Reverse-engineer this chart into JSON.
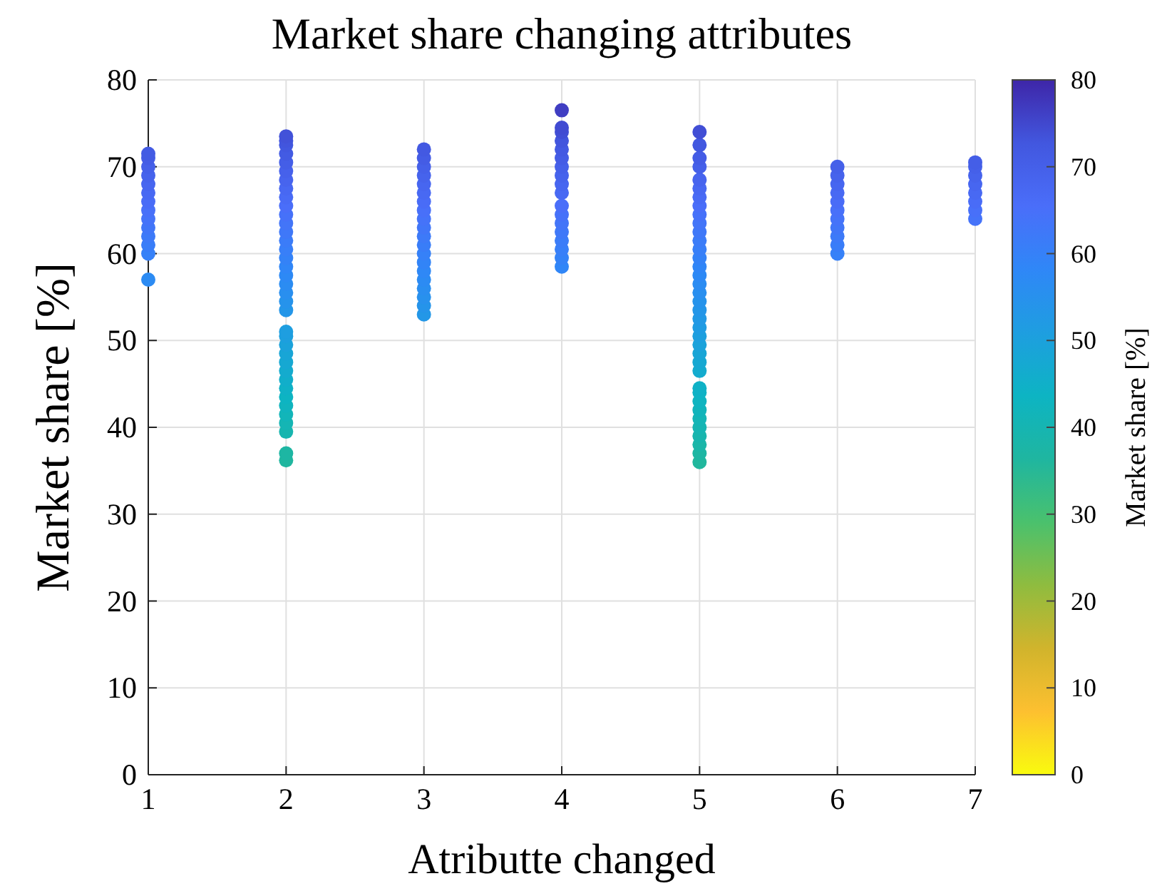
{
  "chart_data": {
    "type": "scatter",
    "title": "Market share changing attributes",
    "xlabel": "Atributte changed",
    "ylabel": "Market share [%]",
    "clabel": "Market share [%]",
    "xlim": [
      1,
      7
    ],
    "xticks": [
      1,
      2,
      3,
      4,
      5,
      6,
      7
    ],
    "ylim": [
      0,
      80
    ],
    "yticks": [
      0,
      10,
      20,
      30,
      40,
      50,
      60,
      70,
      80
    ],
    "clim": [
      0,
      80
    ],
    "cticks": [
      0,
      10,
      20,
      30,
      40,
      50,
      60,
      70,
      80
    ],
    "grid": true,
    "marker": "circle",
    "series": [
      {
        "x": [
          1,
          1,
          1,
          1,
          1,
          1,
          1,
          1,
          1,
          1,
          1,
          1,
          1,
          1,
          2,
          2,
          2,
          2,
          2,
          2,
          2,
          2,
          2,
          2,
          2,
          2,
          2,
          2,
          2,
          2,
          2,
          2,
          2,
          2,
          2,
          2,
          2,
          2,
          2,
          2,
          2,
          2,
          2,
          2,
          2,
          2,
          2,
          2,
          2,
          2,
          2,
          3,
          3,
          3,
          3,
          3,
          3,
          3,
          3,
          3,
          3,
          3,
          3,
          3,
          3,
          3,
          3,
          3,
          3,
          3,
          3,
          4,
          4,
          4,
          4,
          4,
          4,
          4,
          4,
          4,
          4,
          4,
          4,
          4,
          4,
          4,
          4,
          4,
          4,
          5,
          5,
          5,
          5,
          5,
          5,
          5,
          5,
          5,
          5,
          5,
          5,
          5,
          5,
          5,
          5,
          5,
          5,
          5,
          5,
          5,
          5,
          5,
          5,
          5,
          5,
          5,
          5,
          5,
          5,
          5,
          5,
          5,
          5,
          5,
          5,
          5,
          6,
          6,
          6,
          6,
          6,
          6,
          6,
          6,
          6,
          6,
          6,
          7,
          7,
          7,
          7,
          7,
          7,
          7,
          7
        ],
        "values": [
          57,
          60,
          61,
          62,
          63,
          64,
          65,
          66,
          67,
          68,
          69,
          70,
          71,
          71.5,
          36.2,
          37,
          39.5,
          40.5,
          41.5,
          42.5,
          43.5,
          44.5,
          45.5,
          46.5,
          47.5,
          48.5,
          49.5,
          50.5,
          51,
          53.5,
          54.5,
          55.5,
          56.5,
          57.5,
          58.5,
          59.5,
          60.5,
          61.5,
          62.5,
          63.5,
          64.5,
          65.5,
          66.5,
          67.5,
          68.5,
          69.5,
          70.5,
          71.5,
          72.5,
          73,
          73.5,
          53,
          54,
          55,
          56,
          57,
          58,
          59,
          60,
          61,
          62,
          63,
          64,
          65,
          66,
          67,
          68,
          69,
          70,
          71,
          72,
          58.5,
          59.5,
          60.5,
          61.5,
          62.5,
          63.5,
          64.5,
          65.5,
          67,
          68,
          69,
          70,
          71,
          72,
          73,
          74,
          74.5,
          76.5,
          36,
          37,
          38,
          39,
          40,
          41,
          42,
          43,
          44,
          44.5,
          46.5,
          47.5,
          48.5,
          49.5,
          50.5,
          51.5,
          52.5,
          53.5,
          54.5,
          55.5,
          56.5,
          57.5,
          58.5,
          59.5,
          60.5,
          61.5,
          62.5,
          63.5,
          64.5,
          65.5,
          66.5,
          67.5,
          68.5,
          70,
          71,
          72.5,
          74,
          60,
          61,
          62,
          63,
          64,
          65,
          66,
          67,
          68,
          69,
          70,
          64,
          65,
          66,
          67,
          68,
          69,
          70,
          70.5
        ],
        "cvalues": [
          57,
          60,
          61,
          62,
          63,
          64,
          65,
          66,
          67,
          68,
          69,
          70,
          71,
          71.5,
          36.2,
          37,
          39.5,
          40.5,
          41.5,
          42.5,
          43.5,
          44.5,
          45.5,
          46.5,
          47.5,
          48.5,
          49.5,
          50.5,
          51,
          53.5,
          54.5,
          55.5,
          56.5,
          57.5,
          58.5,
          59.5,
          60.5,
          61.5,
          62.5,
          63.5,
          64.5,
          65.5,
          66.5,
          67.5,
          68.5,
          69.5,
          70.5,
          71.5,
          72.5,
          73,
          73.5,
          53,
          54,
          55,
          56,
          57,
          58,
          59,
          60,
          61,
          62,
          63,
          64,
          65,
          66,
          67,
          68,
          69,
          70,
          71,
          72,
          58.5,
          59.5,
          60.5,
          61.5,
          62.5,
          63.5,
          64.5,
          65.5,
          67,
          68,
          69,
          70,
          71,
          72,
          73,
          74,
          74.5,
          76.5,
          36,
          37,
          38,
          39,
          40,
          41,
          42,
          43,
          44,
          44.5,
          46.5,
          47.5,
          48.5,
          49.5,
          50.5,
          51.5,
          52.5,
          53.5,
          54.5,
          55.5,
          56.5,
          57.5,
          58.5,
          59.5,
          60.5,
          61.5,
          62.5,
          63.5,
          64.5,
          65.5,
          66.5,
          67.5,
          68.5,
          70,
          71,
          72.5,
          74,
          60,
          61,
          62,
          63,
          64,
          65,
          66,
          67,
          68,
          69,
          70,
          64,
          65,
          66,
          67,
          68,
          69,
          70,
          70.5
        ]
      }
    ]
  }
}
